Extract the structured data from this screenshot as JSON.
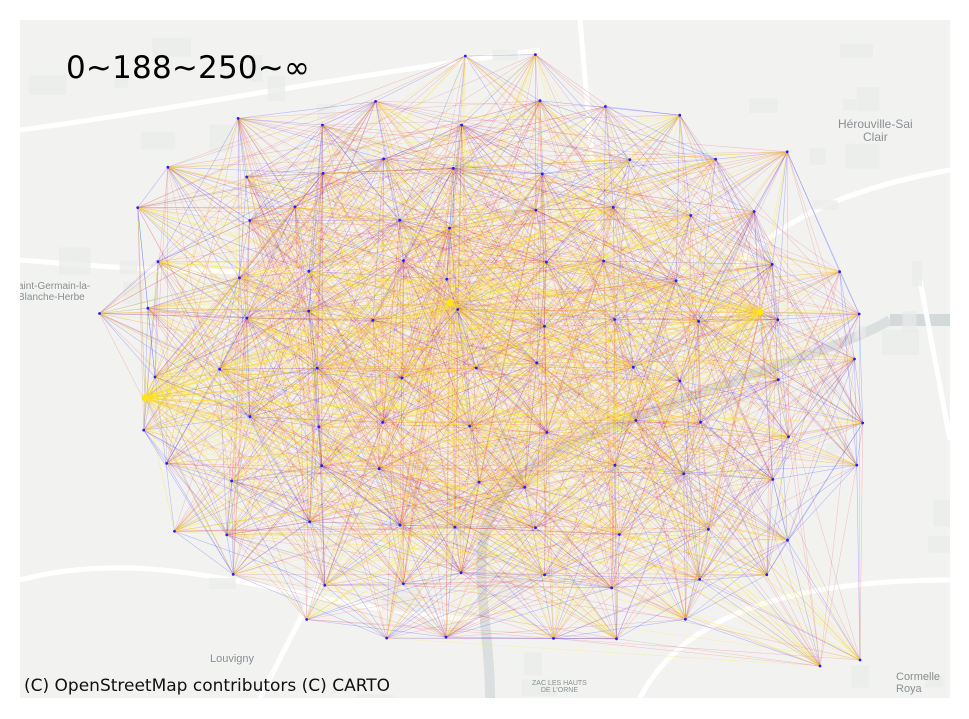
{
  "legend": {
    "title": "0~188~250~∞"
  },
  "attribution": "(C) OpenStreetMap contributors (C) CARTO",
  "basemap_labels": [
    {
      "text": "Hérouville-Saint-Clair",
      "line1": "Hérouville-Sai",
      "line2": "Clair"
    },
    {
      "text": "Saint-Germain-la-Blanche-Herbe",
      "line1": "aint-Germain-la-",
      "line2": "Blanche-Herbe"
    },
    {
      "text": "Louvigny",
      "line1": "Louvigny",
      "line2": ""
    },
    {
      "text": "ZAC LES HAUTS DE L'ORNE",
      "line1": "ZAC LES HAUTS",
      "line2": "DE L'ORNE"
    },
    {
      "text": "Cormelles-le-Royal",
      "line1": "Cormelle",
      "line2": "Roya"
    }
  ],
  "colors": {
    "short": "#1f1fff",
    "medium": "#e0102a",
    "long": "#ffe21a",
    "basemap": "#f2f3f1",
    "road": "#ffffff",
    "water": "#d4dadc"
  },
  "hub_points": [
    "west-hub",
    "center-hub",
    "east-hub"
  ]
}
